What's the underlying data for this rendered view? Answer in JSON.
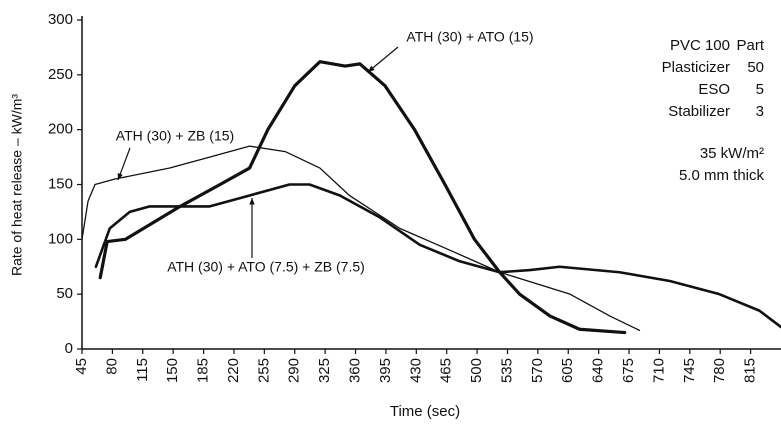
{
  "chart_data": {
    "type": "line",
    "x_label": "Time (sec)",
    "y_label": "Rate of heat release – kW/m³",
    "xlim": [
      45,
      850
    ],
    "ylim": [
      0,
      300
    ],
    "xticks": [
      45,
      80,
      115,
      150,
      185,
      220,
      255,
      290,
      325,
      360,
      395,
      430,
      465,
      500,
      535,
      570,
      605,
      640,
      675,
      710,
      745,
      780,
      815
    ],
    "yticks": [
      0,
      50,
      100,
      150,
      200,
      250,
      300
    ],
    "series": [
      {
        "name": "ATH (30) + ATO (15)",
        "color": "#111111",
        "width": 3.2,
        "x": [
          66,
          74,
          95,
          158,
          204,
          238,
          259,
          290,
          319,
          348,
          365,
          394,
          428,
          463,
          497,
          526,
          549,
          584,
          618,
          670
        ],
        "values": [
          65,
          98,
          100,
          130,
          150,
          165,
          200,
          240,
          262,
          258,
          260,
          240,
          200,
          150,
          100,
          70,
          50,
          30,
          18,
          15
        ]
      },
      {
        "name": "ATH (30) + ZB (15)",
        "color": "#111111",
        "width": 1.3,
        "x": [
          45,
          52,
          60,
          83,
          146,
          192,
          238,
          279,
          319,
          353,
          411,
          469,
          526,
          607,
          653,
          687
        ],
        "values": [
          100,
          135,
          150,
          155,
          165,
          175,
          185,
          180,
          165,
          140,
          110,
          90,
          70,
          50,
          30,
          17
        ]
      },
      {
        "name": "ATH (30) + ATO (7.5) + ZB (7.5)",
        "color": "#111111",
        "width": 2.6,
        "x": [
          61,
          77,
          100,
          123,
          192,
          238,
          284,
          307,
          342,
          388,
          434,
          480,
          526,
          561,
          595,
          664,
          722,
          779,
          825,
          850
        ],
        "values": [
          75,
          110,
          125,
          130,
          130,
          140,
          150,
          150,
          140,
          120,
          95,
          80,
          70,
          72,
          75,
          70,
          62,
          50,
          35,
          20
        ]
      }
    ],
    "info_rows": [
      [
        "PVC 100",
        "Part"
      ],
      [
        "Plasticizer",
        "50"
      ],
      [
        "ESO",
        "5"
      ],
      [
        "Stabilizer",
        "3"
      ]
    ],
    "conditions": [
      "35 kW/m²",
      "5.0 mm thick"
    ]
  }
}
